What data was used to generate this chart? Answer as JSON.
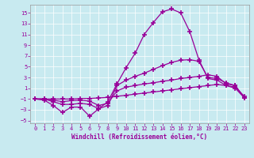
{
  "xlabel": "Windchill (Refroidissement éolien,°C)",
  "background_color": "#c8eaf0",
  "line_color": "#990099",
  "grid_color": "#aacccc",
  "xlim": [
    -0.5,
    23.5
  ],
  "ylim": [
    -5.5,
    16.5
  ],
  "yticks": [
    -5,
    -3,
    -1,
    1,
    3,
    5,
    7,
    9,
    11,
    13,
    15
  ],
  "xticks": [
    0,
    1,
    2,
    3,
    4,
    5,
    6,
    7,
    8,
    9,
    10,
    11,
    12,
    13,
    14,
    15,
    16,
    17,
    18,
    19,
    20,
    21,
    22,
    23
  ],
  "curve1_x": [
    0,
    1,
    2,
    3,
    4,
    5,
    6,
    7,
    8,
    9,
    10,
    11,
    12,
    13,
    14,
    15,
    16,
    17,
    18,
    19,
    20,
    21,
    22,
    23
  ],
  "curve1_y": [
    -1,
    -1.2,
    -2.2,
    -3.5,
    -2.5,
    -2.5,
    -4.2,
    -2.8,
    -1.5,
    1.8,
    4.8,
    7.5,
    11.0,
    13.2,
    15.2,
    15.7,
    15.0,
    11.5,
    6.3,
    2.8,
    2.5,
    1.5,
    1.0,
    -0.8
  ],
  "curve2_x": [
    0,
    1,
    2,
    3,
    4,
    5,
    6,
    7,
    8,
    9,
    10,
    11,
    12,
    13,
    14,
    15,
    16,
    17,
    18,
    19,
    20,
    21,
    22,
    23
  ],
  "curve2_y": [
    -1,
    -1.0,
    -1.5,
    -2.0,
    -2.0,
    -1.8,
    -2.0,
    -2.8,
    -2.2,
    1.5,
    2.5,
    3.2,
    3.8,
    4.5,
    5.2,
    5.8,
    6.2,
    6.3,
    6.0,
    3.0,
    2.8,
    2.0,
    1.5,
    -0.8
  ],
  "curve3_x": [
    0,
    1,
    2,
    3,
    4,
    5,
    6,
    7,
    8,
    9,
    10,
    11,
    12,
    13,
    14,
    15,
    16,
    17,
    18,
    19,
    20,
    21,
    22,
    23
  ],
  "curve3_y": [
    -1,
    -1.0,
    -1.2,
    -1.5,
    -1.3,
    -1.2,
    -1.4,
    -2.2,
    -1.8,
    0.5,
    1.2,
    1.5,
    1.8,
    2.0,
    2.3,
    2.5,
    2.8,
    3.0,
    3.2,
    3.5,
    3.2,
    1.8,
    1.5,
    -0.8
  ],
  "curve4_x": [
    0,
    1,
    2,
    3,
    4,
    5,
    6,
    7,
    8,
    9,
    10,
    11,
    12,
    13,
    14,
    15,
    16,
    17,
    18,
    19,
    20,
    21,
    22,
    23
  ],
  "curve4_y": [
    -1,
    -1.0,
    -1.0,
    -1.0,
    -1.0,
    -0.9,
    -0.9,
    -0.8,
    -0.7,
    -0.5,
    -0.3,
    -0.1,
    0.1,
    0.3,
    0.5,
    0.7,
    0.9,
    1.1,
    1.3,
    1.5,
    1.7,
    1.5,
    1.2,
    -0.5
  ]
}
